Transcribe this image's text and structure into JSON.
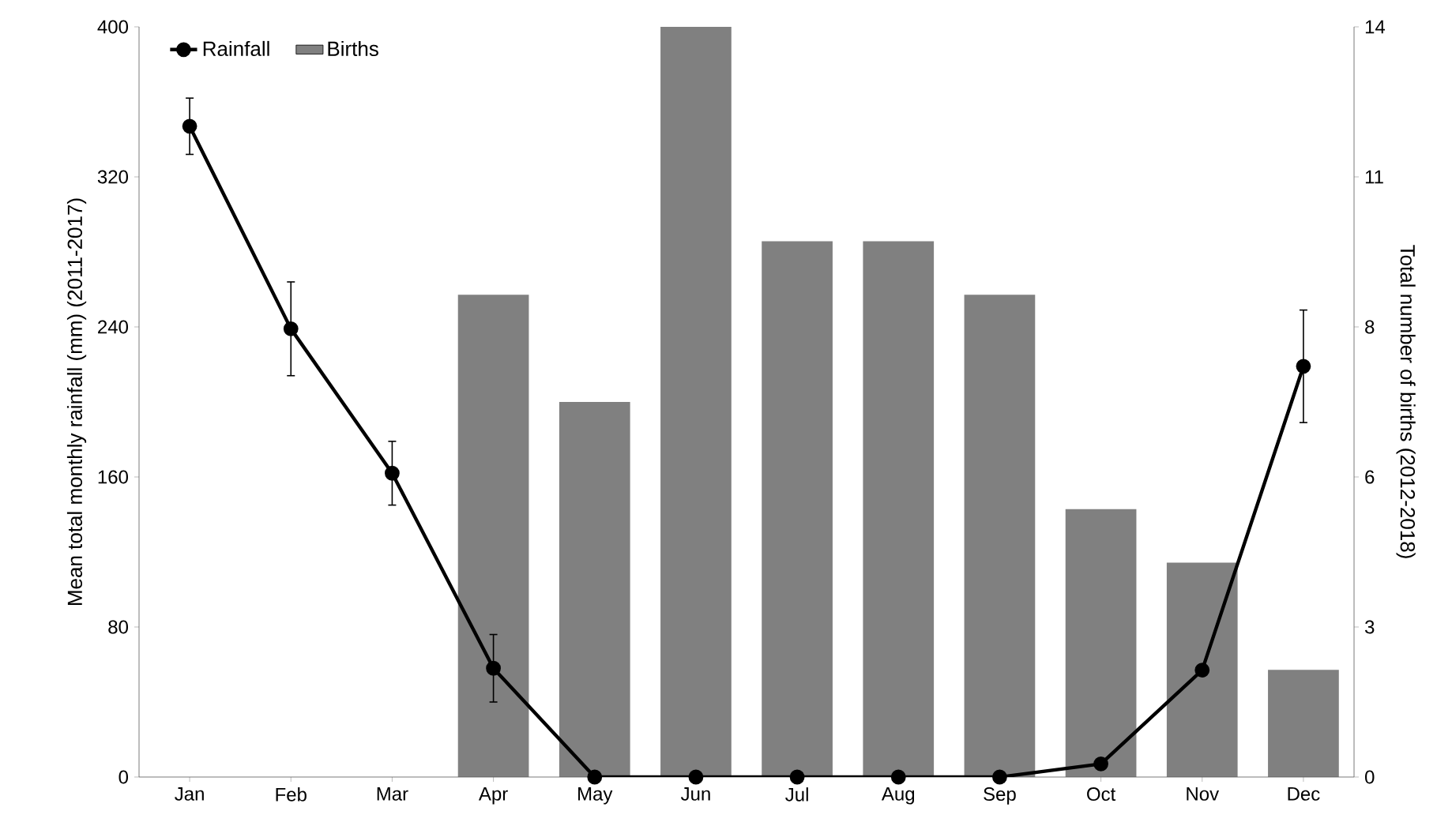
{
  "chart_data": {
    "type": "line",
    "categories": [
      "Jan",
      "Feb",
      "Mar",
      "Apr",
      "May",
      "Jun",
      "Jul",
      "Aug",
      "Sep",
      "Oct",
      "Nov",
      "Dec"
    ],
    "series": [
      {
        "name": "Rainfall",
        "axis": "y",
        "color": "#000000",
        "values": [
          347,
          239,
          162,
          58,
          0,
          0,
          0,
          0,
          0,
          7,
          57,
          219
        ],
        "errors": [
          15,
          25,
          17,
          18,
          null,
          null,
          null,
          null,
          null,
          null,
          null,
          30
        ]
      },
      {
        "name": "Births",
        "type": "bar",
        "axis": "y2",
        "color": "#808080",
        "values": [
          0,
          0,
          0,
          9,
          7,
          14,
          10,
          10,
          9,
          5,
          4,
          2
        ]
      }
    ],
    "ylabel": "Mean total monthly rainfall (mm) (2011-2017)",
    "y2label": "Total number of births (2012-2018)",
    "ylim": [
      0,
      400
    ],
    "yticks": [
      0,
      80,
      160,
      240,
      320,
      400
    ],
    "y2lim": [
      0,
      14
    ],
    "y2ticks": [
      0,
      {
        "value": 2.8,
        "label": "3"
      },
      {
        "value": 5.6,
        "label": "6"
      },
      {
        "value": 8.4,
        "label": "8"
      },
      {
        "value": 11.2,
        "label": "11"
      },
      14
    ],
    "marker": "circle",
    "line_style": "solid",
    "legend": "top left",
    "grid": false
  }
}
